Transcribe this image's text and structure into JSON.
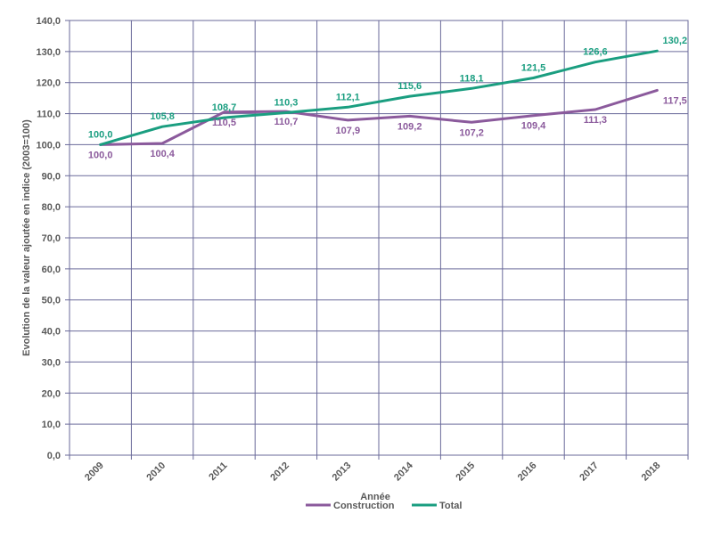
{
  "chart_data": {
    "type": "line",
    "categories": [
      "2009",
      "2010",
      "2011",
      "2012",
      "2013",
      "2014",
      "2015",
      "2016",
      "2017",
      "2018"
    ],
    "series": [
      {
        "name": "Construction",
        "color": "#8B5A9C",
        "values": [
          100.0,
          100.4,
          110.5,
          110.7,
          107.9,
          109.2,
          107.2,
          109.4,
          111.3,
          117.5
        ],
        "labels": [
          "100,0",
          "100,4",
          "110,5",
          "110,7",
          "107,9",
          "109,2",
          "107,2",
          "109,4",
          "111,3",
          "117,5"
        ]
      },
      {
        "name": "Total",
        "color": "#1A9E80",
        "values": [
          100.0,
          105.8,
          108.7,
          110.3,
          112.1,
          115.6,
          118.1,
          121.5,
          126.6,
          130.2
        ],
        "labels": [
          "100,0",
          "105,8",
          "108,7",
          "110,3",
          "112,1",
          "115,6",
          "118,1",
          "121,5",
          "126,6",
          "130,2"
        ]
      }
    ],
    "xlabel": "Année",
    "ylabel": "Evolution de la valeur ajoutée en indice (2003=100)",
    "ylim": [
      0,
      140
    ],
    "yticks": [
      "0,0",
      "10,0",
      "20,0",
      "30,0",
      "40,0",
      "50,0",
      "60,0",
      "70,0",
      "80,0",
      "90,0",
      "100,0",
      "110,0",
      "120,0",
      "130,0",
      "140,0"
    ],
    "grid": true,
    "grid_color": "#6A6A9A",
    "legend_position": "bottom"
  }
}
